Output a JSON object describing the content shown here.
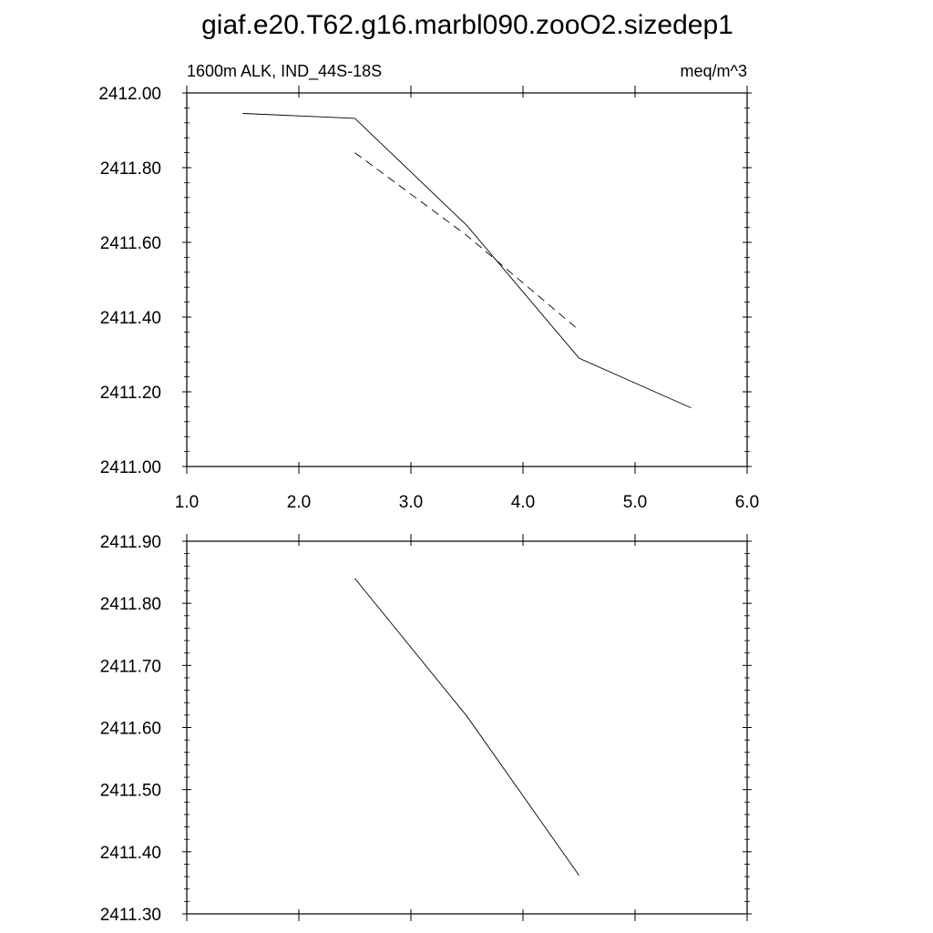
{
  "figure": {
    "title": "giaf.e20.T62.g16.marbl090.zooO2.sizedep1"
  },
  "chart_data": [
    {
      "type": "line",
      "panel": "top",
      "left_string": "1600m ALK, IND_44S-18S",
      "right_string": "meq/m^3",
      "xlim": [
        1.0,
        6.0
      ],
      "ylim": [
        2411.0,
        2412.0
      ],
      "x_ticks": [
        "1.0",
        "2.0",
        "3.0",
        "4.0",
        "5.0",
        "6.0"
      ],
      "y_ticks": [
        "2411.00",
        "2411.20",
        "2411.40",
        "2411.60",
        "2411.80",
        "2412.00"
      ],
      "grid": false,
      "series": [
        {
          "style": "solid",
          "color": "#000000",
          "x": [
            1.5,
            2.5,
            3.5,
            4.5,
            5.5
          ],
          "y": [
            2411.945,
            2411.932,
            2411.645,
            2411.29,
            2411.157
          ]
        },
        {
          "style": "dashed",
          "color": "#000000",
          "x": [
            2.5,
            3.5,
            4.5
          ],
          "y": [
            2411.84,
            2411.618,
            2411.365
          ]
        }
      ]
    },
    {
      "type": "line",
      "panel": "bottom",
      "left_string": "",
      "right_string": "",
      "xlim": [
        1.0,
        6.0
      ],
      "ylim": [
        2411.3,
        2411.9
      ],
      "x_ticks": [],
      "y_ticks": [
        "2411.30",
        "2411.40",
        "2411.50",
        "2411.60",
        "2411.70",
        "2411.80",
        "2411.90"
      ],
      "grid": false,
      "series": [
        {
          "style": "solid",
          "color": "#000000",
          "x": [
            2.5,
            3.5,
            4.5
          ],
          "y": [
            2411.84,
            2411.618,
            2411.362
          ]
        }
      ]
    }
  ]
}
